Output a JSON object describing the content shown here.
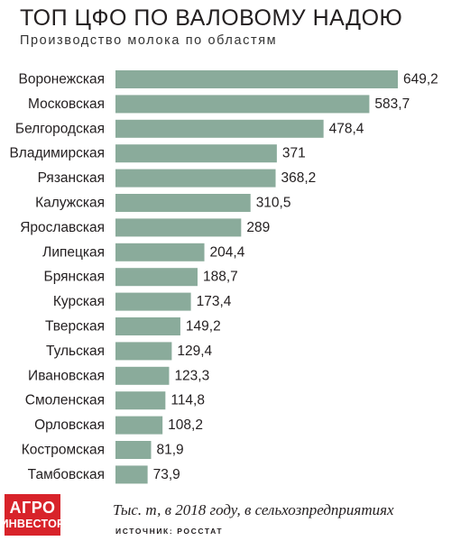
{
  "header": {
    "title": "ТОП ЦФО ПО ВАЛОВОМУ НАДОЮ",
    "subtitle": "Производство молока по областям"
  },
  "footer": {
    "logo_line1": "АГРО",
    "logo_line2": "ИНВЕСТОР",
    "note": "Тыс. т, в 2018 году, в сельхозпредприятиях",
    "source": "ИСТОЧНИК: РОССТАТ"
  },
  "chart_data": {
    "type": "bar",
    "orientation": "horizontal",
    "title": "ТОП ЦФО ПО ВАЛОВОМУ НАДОЮ",
    "subtitle": "Производство молока по областям",
    "unit_note": "Тыс. т, в 2018 году, в сельхозпредприятиях",
    "bar_color": "#8aab9b",
    "categories": [
      "Воронежская",
      "Московская",
      "Белгородская",
      "Владимирская",
      "Рязанская",
      "Калужская",
      "Ярославская",
      "Липецкая",
      "Брянская",
      "Курская",
      "Тверская",
      "Тульская",
      "Ивановская",
      "Смоленская",
      "Орловская",
      "Костромская",
      "Тамбовская"
    ],
    "values": [
      649.2,
      583.7,
      478.4,
      371,
      368.2,
      310.5,
      289,
      204.4,
      188.7,
      173.4,
      149.2,
      129.4,
      123.3,
      114.8,
      108.2,
      81.9,
      73.9
    ],
    "value_labels": [
      "649,2",
      "583,7",
      "478,4",
      "371",
      "368,2",
      "310,5",
      "289",
      "204,4",
      "188,7",
      "173,4",
      "149,2",
      "129,4",
      "123,3",
      "114,8",
      "108,2",
      "81,9",
      "73,9"
    ],
    "grid": false,
    "legend": "none"
  }
}
